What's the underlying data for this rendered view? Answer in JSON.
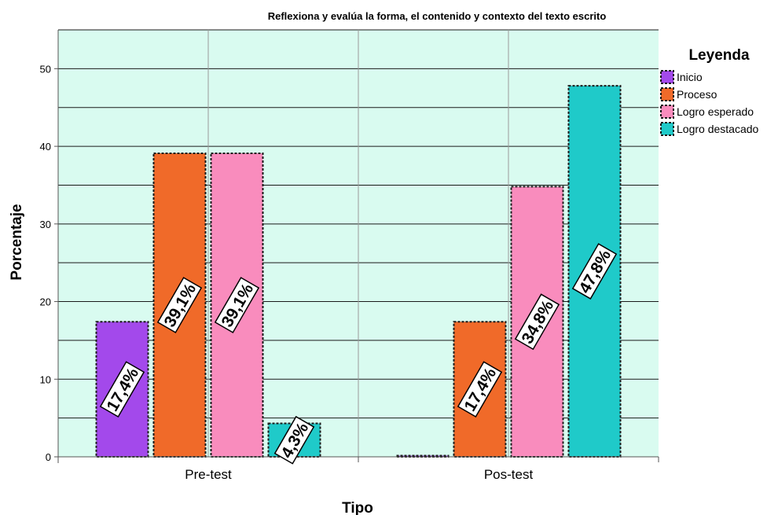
{
  "chart_data": {
    "type": "bar",
    "title": "Reflexiona y evalúa la forma, el contenido y contexto del texto escrito",
    "xlabel": "Tipo",
    "ylabel": "Porcentaje",
    "ylim": [
      0,
      55
    ],
    "yticks": [
      0,
      10,
      20,
      30,
      40,
      50
    ],
    "grid": true,
    "background_color": "#d9fbf0",
    "categories": [
      "Pre-test",
      "Pos-test"
    ],
    "legend": {
      "title": "Leyenda",
      "placement": "right"
    },
    "series": [
      {
        "name": "Inicio",
        "color": "#a349eb",
        "values": [
          17.4,
          0
        ],
        "labels": [
          "17,4%",
          ""
        ]
      },
      {
        "name": "Proceso",
        "color": "#f06a29",
        "values": [
          39.1,
          17.4
        ],
        "labels": [
          "39,1%",
          "17,4%"
        ]
      },
      {
        "name": "Logro esperado",
        "color": "#f98cbd",
        "values": [
          39.1,
          34.8
        ],
        "labels": [
          "39,1%",
          "34,8%"
        ]
      },
      {
        "name": "Logro destacado",
        "color": "#1fcac9",
        "values": [
          4.3,
          47.8
        ],
        "labels": [
          "4,3%",
          "47,8%"
        ]
      }
    ]
  }
}
